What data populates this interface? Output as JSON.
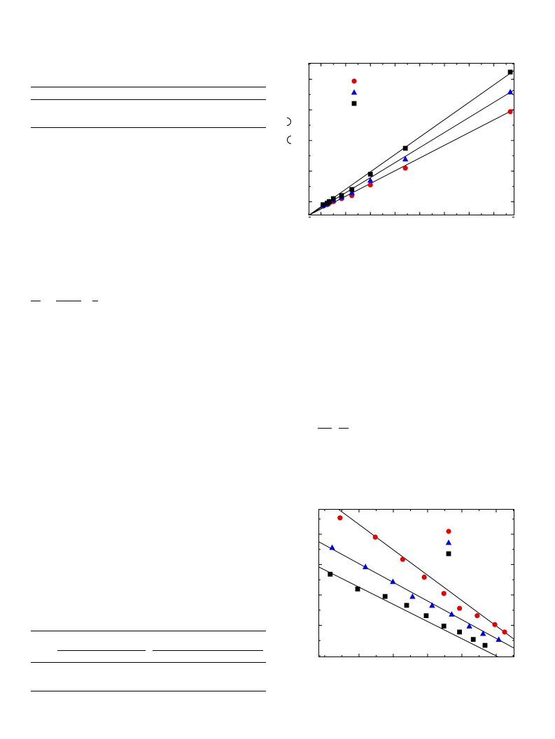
{
  "page": {
    "background": "#ffffff"
  },
  "colors": {
    "series_1": "#e60000",
    "series_2": "#0000e6",
    "series_3": "#000000"
  },
  "chart_data": [
    {
      "type": "scatter",
      "title": "",
      "xlabel": "",
      "ylabel": "",
      "xlim": [
        0,
        100
      ],
      "ylim": [
        0,
        100
      ],
      "grid": false,
      "legend_placement": "top-left",
      "series": [
        {
          "marker": "circle",
          "color": "#e60000",
          "points": [
            [
              7,
              6
            ],
            [
              9,
              7
            ],
            [
              10,
              8
            ],
            [
              12,
              9
            ],
            [
              16,
              11
            ],
            [
              21,
              13
            ],
            [
              30,
              20
            ],
            [
              47,
              31
            ],
            [
              98,
              68
            ]
          ],
          "fit": [
            [
              0,
              0
            ],
            [
              102,
              71
            ]
          ]
        },
        {
          "marker": "triangle",
          "color": "#0000e6",
          "points": [
            [
              7,
              6.5
            ],
            [
              9,
              7.5
            ],
            [
              10,
              9
            ],
            [
              12,
              10
            ],
            [
              16,
              12
            ],
            [
              21,
              15
            ],
            [
              30,
              23
            ],
            [
              47,
              37
            ],
            [
              98,
              81
            ]
          ],
          "fit": [
            [
              0,
              0
            ],
            [
              102,
              84
            ]
          ]
        },
        {
          "marker": "square",
          "color": "#000000",
          "points": [
            [
              7,
              7
            ],
            [
              9,
              8
            ],
            [
              10,
              9
            ],
            [
              12,
              11
            ],
            [
              16,
              13
            ],
            [
              21,
              17
            ],
            [
              30,
              27
            ],
            [
              47,
              44
            ],
            [
              98,
              94
            ]
          ],
          "fit": [
            [
              0,
              0
            ],
            [
              102,
              97
            ]
          ]
        }
      ]
    },
    {
      "type": "scatter",
      "title": "",
      "xlabel": "",
      "ylabel": "",
      "xlim": [
        0,
        100
      ],
      "ylim": [
        0,
        100
      ],
      "grid": false,
      "legend_placement": "top-right",
      "series": [
        {
          "marker": "circle",
          "color": "#e60000",
          "points": [
            [
              11,
              94
            ],
            [
              29,
              81
            ],
            [
              43,
              66
            ],
            [
              54,
              54
            ],
            [
              64,
              43
            ],
            [
              72,
              33
            ],
            [
              81,
              28
            ],
            [
              90,
              22
            ],
            [
              95,
              17
            ]
          ],
          "fit": [
            [
              10,
              100
            ],
            [
              100,
              12
            ]
          ]
        },
        {
          "marker": "triangle",
          "color": "#0000e6",
          "points": [
            [
              7,
              74
            ],
            [
              24,
              61
            ],
            [
              38,
              51
            ],
            [
              48,
              41
            ],
            [
              58,
              35
            ],
            [
              68,
              29
            ],
            [
              77,
              21
            ],
            [
              84,
              16
            ],
            [
              92,
              12
            ]
          ],
          "fit": [
            [
              0,
              78
            ],
            [
              100,
              6
            ]
          ]
        },
        {
          "marker": "square",
          "color": "#000000",
          "points": [
            [
              6,
              56
            ],
            [
              20,
              46
            ],
            [
              34,
              41
            ],
            [
              45,
              35
            ],
            [
              55,
              28
            ],
            [
              64,
              21
            ],
            [
              72,
              17
            ],
            [
              79,
              12
            ],
            [
              85,
              8
            ]
          ],
          "fit": [
            [
              0,
              61
            ],
            [
              92,
              0
            ]
          ]
        }
      ]
    }
  ]
}
